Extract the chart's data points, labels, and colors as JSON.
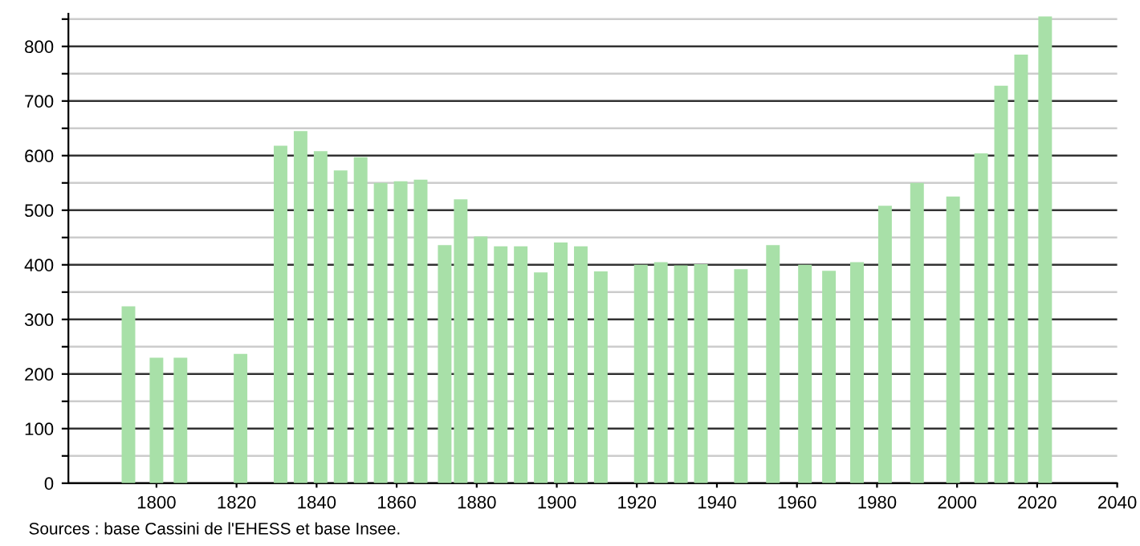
{
  "chart_data": {
    "type": "bar",
    "x": [
      1793,
      1800,
      1806,
      1821,
      1831,
      1836,
      1841,
      1846,
      1851,
      1856,
      1861,
      1866,
      1872,
      1876,
      1881,
      1886,
      1891,
      1896,
      1901,
      1906,
      1911,
      1921,
      1926,
      1931,
      1936,
      1946,
      1954,
      1962,
      1968,
      1975,
      1982,
      1990,
      1999,
      2006,
      2011,
      2016,
      2022
    ],
    "values": [
      324,
      230,
      230,
      237,
      618,
      645,
      608,
      573,
      597,
      550,
      553,
      556,
      436,
      520,
      452,
      434,
      434,
      386,
      441,
      434,
      388,
      400,
      405,
      399,
      401,
      392,
      436,
      400,
      389,
      405,
      508,
      550,
      525,
      604,
      728,
      785,
      855
    ],
    "color": "#a8e0a8",
    "xlim": [
      1778,
      2040
    ],
    "xticks": [
      1800,
      1820,
      1840,
      1860,
      1880,
      1900,
      1920,
      1940,
      1960,
      1980,
      2000,
      2020,
      2040
    ],
    "ylim": [
      0,
      860
    ],
    "yticks": [
      0,
      {
        "value": 50,
        "label": null
      },
      100,
      {
        "value": 150,
        "label": null
      },
      200,
      {
        "value": 250,
        "label": null
      },
      300,
      {
        "value": 350,
        "label": null
      },
      400,
      {
        "value": 450,
        "label": null
      },
      500,
      {
        "value": 550,
        "label": null
      },
      600,
      {
        "value": 650,
        "label": null
      },
      700,
      {
        "value": 750,
        "label": null
      },
      800,
      {
        "value": 850,
        "label": null
      }
    ],
    "grid": "y",
    "annotations": [
      "Sources : base Cassini de l'EHESS et base Insee."
    ]
  }
}
